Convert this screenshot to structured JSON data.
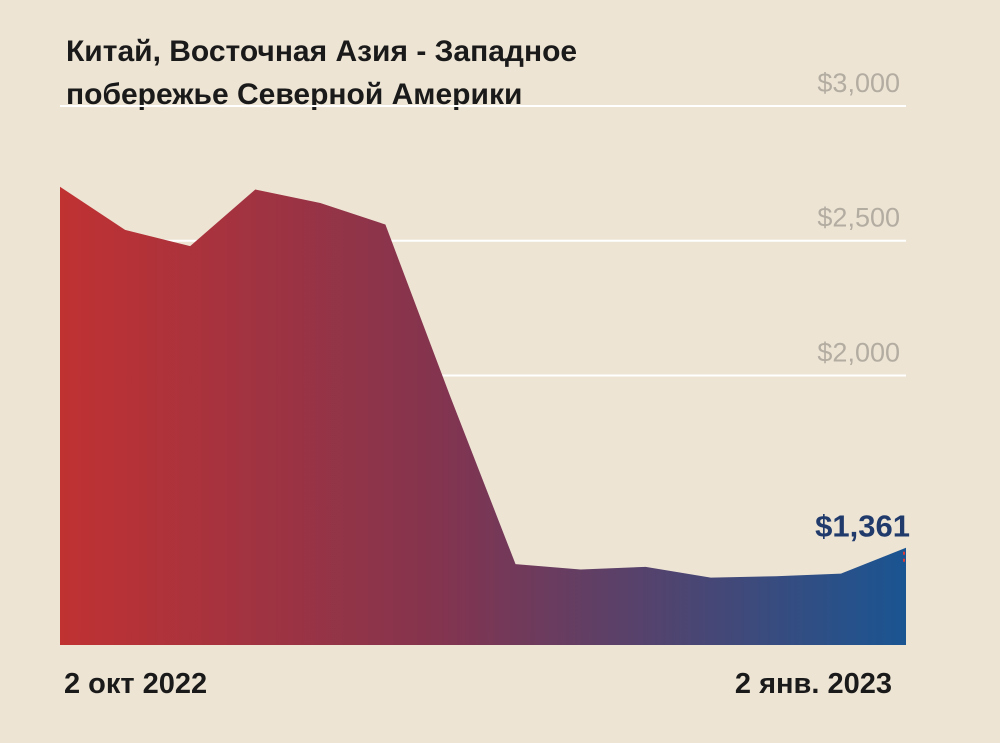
{
  "chart_data": {
    "type": "area",
    "title_lines": [
      "Китай, Восточная Азия - Западное",
      "побережье Северной Америки"
    ],
    "x_labels": {
      "start": "2 окт 2022",
      "end": "2 янв. 2023"
    },
    "x": [
      0,
      1,
      2,
      3,
      4,
      5,
      6,
      7,
      8,
      9,
      10,
      11,
      12,
      13
    ],
    "values": [
      2700,
      2540,
      2480,
      2690,
      2640,
      2560,
      1920,
      1300,
      1280,
      1290,
      1250,
      1255,
      1265,
      1361
    ],
    "ylim": [
      1000,
      3100
    ],
    "yticks": [
      3000,
      2500,
      2000
    ],
    "ytick_labels": [
      "$3,000",
      "$2,500",
      "$2,000"
    ],
    "last_value_label": "$1,361",
    "gradient": {
      "start": "#c03232",
      "mid": "#83344f",
      "end": "#1a5592"
    },
    "grid": true,
    "gridline_color": "#ffffff",
    "label_color": "#1f3a6b",
    "marker_color": "#d93a3a"
  }
}
